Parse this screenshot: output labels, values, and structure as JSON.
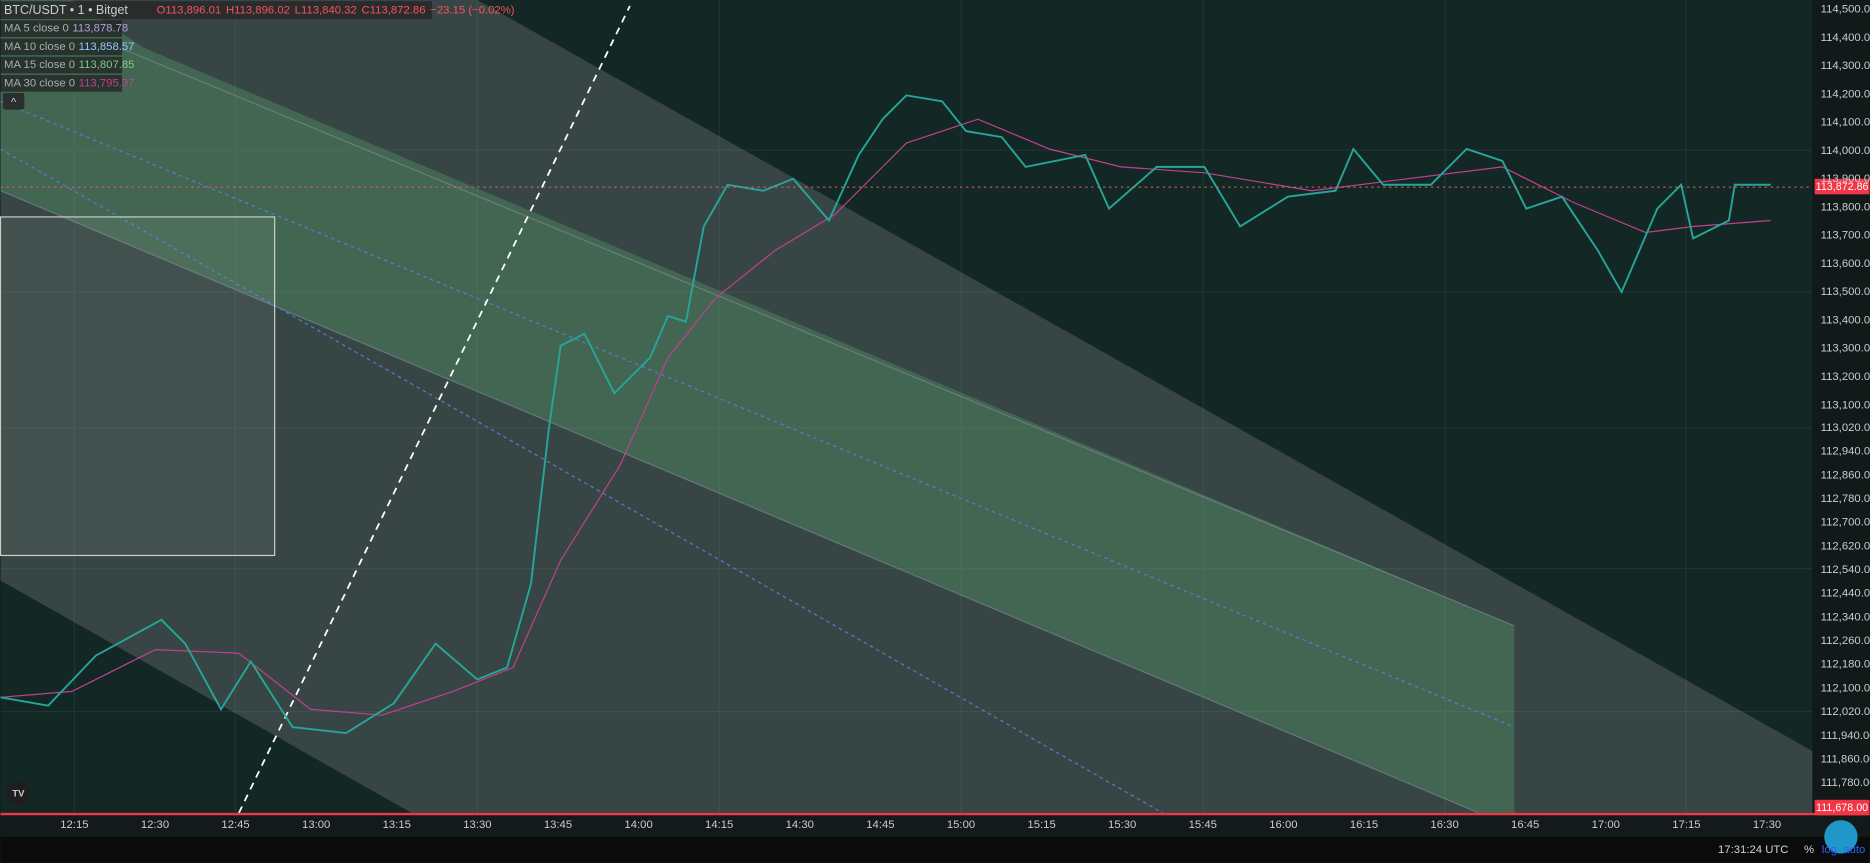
{
  "header": {
    "symbol": "BTC/USDT • 1 • Bitget",
    "ohlc": {
      "open": "O113,896.01",
      "high": "H113,896.02",
      "low": "L113,840.32",
      "close": "C113,872.86",
      "change": "−23.15 (−0.02%)"
    }
  },
  "indicators": [
    {
      "name": "MA 5 close 0",
      "value": "113,878.78",
      "color": "#b39ddb"
    },
    {
      "name": "MA 10 close 0",
      "value": "113,858.57",
      "color": "#90caf9"
    },
    {
      "name": "MA 15 close 0",
      "value": "113,807.85",
      "color": "#81c784"
    },
    {
      "name": "MA 30 close 0",
      "value": "113,795.37",
      "color": "#c2408f"
    }
  ],
  "price_axis": {
    "upper": [
      "114,500.00",
      "114,400.00",
      "114,300.00",
      "114,200.00",
      "114,100.00",
      "114,000.00",
      "113,900.00",
      "113,800.00",
      "113,700.00",
      "113,600.00",
      "113,500.00",
      "113,400.00",
      "113,300.00",
      "113,200.00",
      "113,100.00"
    ],
    "lower": [
      "113,020.00",
      "112,940.00",
      "112,860.00",
      "112,780.00",
      "112,700.00",
      "112,620.00",
      "112,540.00",
      "112,440.00",
      "112,340.00",
      "112,260.00",
      "112,180.00",
      "112,100.00",
      "112,020.00",
      "111,940.00",
      "111,860.00",
      "111,780.00"
    ],
    "current": "113,872.86",
    "bottom": "111,678.00"
  },
  "time_axis": [
    "12:15",
    "12:30",
    "12:45",
    "13:00",
    "13:15",
    "13:30",
    "13:45",
    "14:00",
    "14:15",
    "14:30",
    "14:45",
    "15:00",
    "15:15",
    "15:30",
    "15:45",
    "16:00",
    "16:15",
    "16:30",
    "16:45",
    "17:00",
    "17:15",
    "17:30"
  ],
  "status_bar": {
    "clock": "17:31:24 UTC",
    "percent": "%",
    "log": "log",
    "auto": "auto"
  }
}
